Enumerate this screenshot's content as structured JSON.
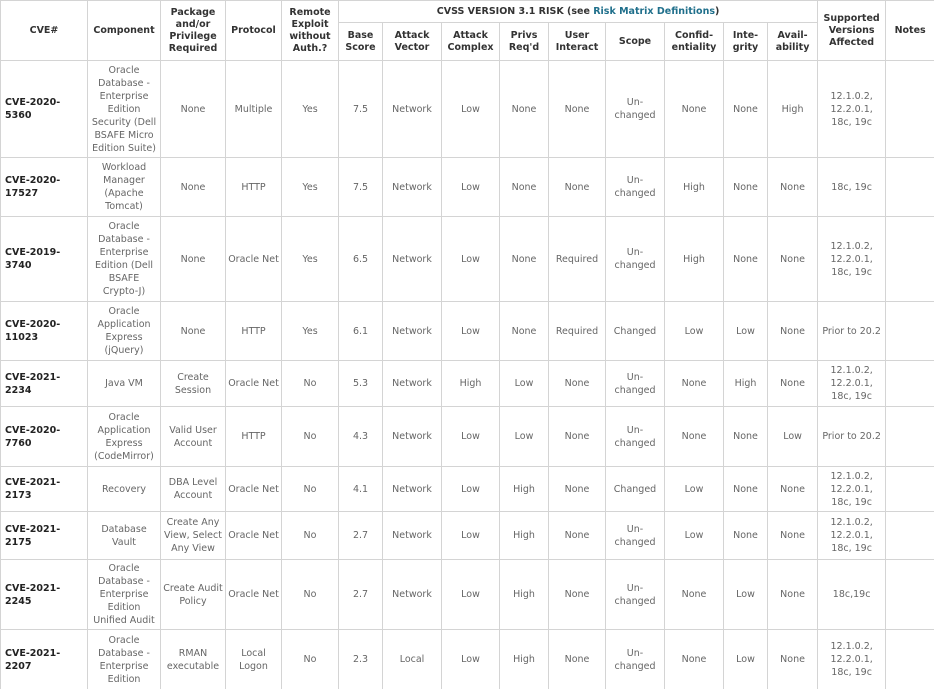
{
  "table": {
    "columns_left": [
      "CVE#",
      "Component",
      "Package and/or Privilege Required",
      "Protocol",
      "Remote Exploit without Auth.?"
    ],
    "group_header": {
      "prefix": "CVSS VERSION 3.1 RISK (see ",
      "link": "Risk Matrix Definitions",
      "suffix": ")"
    },
    "columns_cvss": [
      "Base Score",
      "Attack Vector",
      "Attack Complex",
      "Privs Req'd",
      "User Interact",
      "Scope",
      "Confid-entiality",
      "Inte-grity",
      "Avail-ability"
    ],
    "columns_right": [
      "Supported Versions Affected",
      "Notes"
    ],
    "rows": [
      [
        "CVE-2020-5360",
        "Oracle Database - Enterprise Edition Security (Dell BSAFE Micro Edition Suite)",
        "None",
        "Multiple",
        "Yes",
        "7.5",
        "Network",
        "Low",
        "None",
        "None",
        "Un-changed",
        "None",
        "None",
        "High",
        "12.1.0.2, 12.2.0.1, 18c, 19c"
      ],
      [
        "CVE-2020-17527",
        "Workload Manager (Apache Tomcat)",
        "None",
        "HTTP",
        "Yes",
        "7.5",
        "Network",
        "Low",
        "None",
        "None",
        "Un-changed",
        "High",
        "None",
        "None",
        "18c, 19c"
      ],
      [
        "CVE-2019-3740",
        "Oracle Database - Enterprise Edition (Dell BSAFE Crypto-J)",
        "None",
        "Oracle Net",
        "Yes",
        "6.5",
        "Network",
        "Low",
        "None",
        "Required",
        "Un-changed",
        "High",
        "None",
        "None",
        "12.1.0.2, 12.2.0.1, 18c, 19c"
      ],
      [
        "CVE-2020-11023",
        "Oracle Application Express (jQuery)",
        "None",
        "HTTP",
        "Yes",
        "6.1",
        "Network",
        "Low",
        "None",
        "Required",
        "Changed",
        "Low",
        "Low",
        "None",
        "Prior to 20.2"
      ],
      [
        "CVE-2021-2234",
        "Java VM",
        "Create Session",
        "Oracle Net",
        "No",
        "5.3",
        "Network",
        "High",
        "Low",
        "None",
        "Un-changed",
        "None",
        "High",
        "None",
        "12.1.0.2, 12.2.0.1, 18c, 19c"
      ],
      [
        "CVE-2020-7760",
        "Oracle Application Express (CodeMirror)",
        "Valid User Account",
        "HTTP",
        "No",
        "4.3",
        "Network",
        "Low",
        "Low",
        "None",
        "Un-changed",
        "None",
        "None",
        "Low",
        "Prior to 20.2"
      ],
      [
        "CVE-2021-2173",
        "Recovery",
        "DBA Level Account",
        "Oracle Net",
        "No",
        "4.1",
        "Network",
        "Low",
        "High",
        "None",
        "Changed",
        "Low",
        "None",
        "None",
        "12.1.0.2, 12.2.0.1, 18c, 19c"
      ],
      [
        "CVE-2021-2175",
        "Database Vault",
        "Create Any View, Select Any View",
        "Oracle Net",
        "No",
        "2.7",
        "Network",
        "Low",
        "High",
        "None",
        "Un-changed",
        "Low",
        "None",
        "None",
        "12.1.0.2, 12.2.0.1, 18c, 19c"
      ],
      [
        "CVE-2021-2245",
        "Oracle Database - Enterprise Edition Unified Audit",
        "Create Audit Policy",
        "Oracle Net",
        "No",
        "2.7",
        "Network",
        "Low",
        "High",
        "None",
        "Un-changed",
        "None",
        "Low",
        "None",
        "18c,19c"
      ],
      [
        "CVE-2021-2207",
        "Oracle Database - Enterprise Edition",
        "RMAN executable",
        "Local Logon",
        "No",
        "2.3",
        "Local",
        "Low",
        "High",
        "None",
        "Un-changed",
        "None",
        "Low",
        "None",
        "12.1.0.2, 12.2.0.1, 18c, 19c"
      ]
    ]
  }
}
